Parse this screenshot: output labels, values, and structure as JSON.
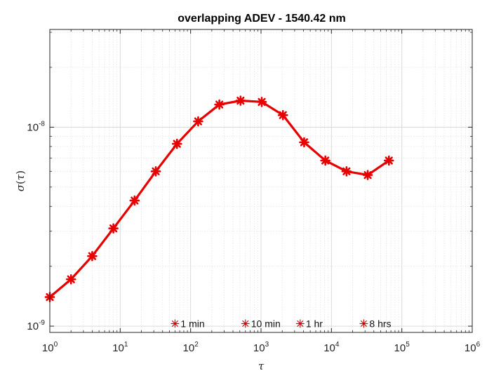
{
  "chart_data": {
    "type": "line",
    "title": "overlapping ADEV - 1540.42 nm",
    "xlabel": "τ",
    "ylabel_parts": [
      "σ",
      "(",
      "τ",
      ")"
    ],
    "x_scale": "log",
    "y_scale": "log",
    "xlim": [
      1,
      1000000
    ],
    "ylim": [
      9.3e-10,
      3.1e-08
    ],
    "grid": true,
    "x_ticks": [
      {
        "base": "10",
        "exp": "0"
      },
      {
        "base": "10",
        "exp": "1"
      },
      {
        "base": "10",
        "exp": "2"
      },
      {
        "base": "10",
        "exp": "3"
      },
      {
        "base": "10",
        "exp": "4"
      },
      {
        "base": "10",
        "exp": "5"
      },
      {
        "base": "10",
        "exp": "6"
      }
    ],
    "y_ticks": [
      {
        "value": 1e-09,
        "base": "10",
        "exp": "-9"
      },
      {
        "value": 1e-08,
        "base": "10",
        "exp": "-8"
      }
    ],
    "series": [
      {
        "color": "#e80000",
        "marker": "asterisk",
        "x": [
          1,
          2,
          4,
          8,
          16,
          32,
          64,
          128,
          256,
          512,
          1024,
          2048,
          4096,
          8192,
          16384,
          32768,
          65536
        ],
        "y": [
          1.4e-09,
          1.72e-09,
          2.25e-09,
          3.1e-09,
          4.28e-09,
          6e-09,
          8.25e-09,
          1.07e-08,
          1.3e-08,
          1.36e-08,
          1.34e-08,
          1.15e-08,
          8.4e-09,
          6.8e-09,
          6e-09,
          5.75e-09,
          6.8e-09
        ]
      }
    ],
    "annotations": [
      {
        "x": 60,
        "label": "1 min"
      },
      {
        "x": 600,
        "label": "10 min"
      },
      {
        "x": 3600,
        "label": "1 hr"
      },
      {
        "x": 28800,
        "label": "8 hrs"
      }
    ],
    "annotation_y": 1.03e-09,
    "annotation_color": "#cc0000"
  }
}
